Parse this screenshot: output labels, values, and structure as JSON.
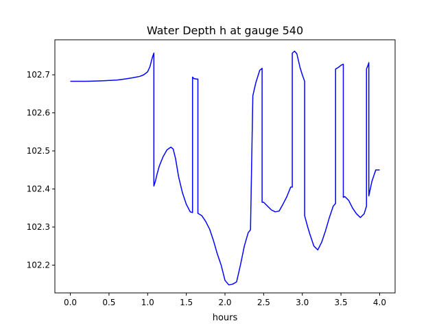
{
  "chart_data": {
    "type": "line",
    "title": "Water Depth h at gauge 540",
    "xlabel": "hours",
    "ylabel": "",
    "xlim": [
      -0.2,
      4.2
    ],
    "ylim": [
      102.127,
      102.792
    ],
    "xticks": [
      0.0,
      0.5,
      1.0,
      1.5,
      2.0,
      2.5,
      3.0,
      3.5,
      4.0
    ],
    "xtick_labels": [
      "0.0",
      "0.5",
      "1.0",
      "1.5",
      "2.0",
      "2.5",
      "3.0",
      "3.5",
      "4.0"
    ],
    "yticks": [
      102.2,
      102.3,
      102.4,
      102.5,
      102.6,
      102.7
    ],
    "ytick_labels": [
      "102.2",
      "102.3",
      "102.4",
      "102.5",
      "102.6",
      "102.7"
    ],
    "grid": false,
    "series": [
      {
        "color": "#0000ff",
        "x": [
          0.0,
          0.2,
          0.4,
          0.6,
          0.7,
          0.8,
          0.9,
          0.95,
          1.0,
          1.03,
          1.06,
          1.08,
          1.08,
          1.1,
          1.12,
          1.15,
          1.2,
          1.25,
          1.3,
          1.33,
          1.36,
          1.4,
          1.45,
          1.5,
          1.55,
          1.58,
          1.58,
          1.6,
          1.63,
          1.65,
          1.65,
          1.7,
          1.75,
          1.8,
          1.85,
          1.9,
          1.95,
          2.0,
          2.05,
          2.1,
          2.15,
          2.2,
          2.25,
          2.3,
          2.33,
          2.36,
          2.36,
          2.4,
          2.45,
          2.48,
          2.48,
          2.5,
          2.55,
          2.6,
          2.65,
          2.7,
          2.75,
          2.8,
          2.85,
          2.87,
          2.87,
          2.9,
          2.93,
          2.97,
          3.0,
          3.03,
          3.03,
          3.07,
          3.1,
          3.15,
          3.2,
          3.25,
          3.3,
          3.35,
          3.4,
          3.43,
          3.43,
          3.47,
          3.5,
          3.53,
          3.53,
          3.55,
          3.6,
          3.65,
          3.7,
          3.75,
          3.8,
          3.83,
          3.83,
          3.85,
          3.86,
          3.86,
          3.9,
          3.95,
          4.0
        ],
        "y": [
          102.683,
          102.683,
          102.684,
          102.686,
          102.689,
          102.692,
          102.696,
          102.7,
          102.708,
          102.722,
          102.745,
          102.757,
          102.408,
          102.42,
          102.438,
          102.46,
          102.485,
          102.503,
          102.51,
          102.505,
          102.48,
          102.432,
          102.39,
          102.36,
          102.34,
          102.338,
          102.694,
          102.69,
          102.689,
          102.689,
          102.336,
          102.33,
          102.315,
          102.295,
          102.265,
          102.23,
          102.2,
          102.16,
          102.148,
          102.15,
          102.156,
          102.2,
          102.25,
          102.285,
          102.293,
          102.645,
          102.645,
          102.68,
          102.712,
          102.717,
          102.365,
          102.365,
          102.355,
          102.345,
          102.34,
          102.342,
          102.36,
          102.38,
          102.405,
          102.405,
          102.757,
          102.762,
          102.755,
          102.72,
          102.7,
          102.683,
          102.33,
          102.3,
          102.28,
          102.25,
          102.24,
          102.26,
          102.29,
          102.325,
          102.355,
          102.362,
          102.715,
          102.72,
          102.725,
          102.728,
          102.378,
          102.38,
          102.37,
          102.35,
          102.335,
          102.325,
          102.335,
          102.355,
          102.715,
          102.725,
          102.732,
          102.382,
          102.42,
          102.45,
          102.45
        ]
      }
    ]
  }
}
